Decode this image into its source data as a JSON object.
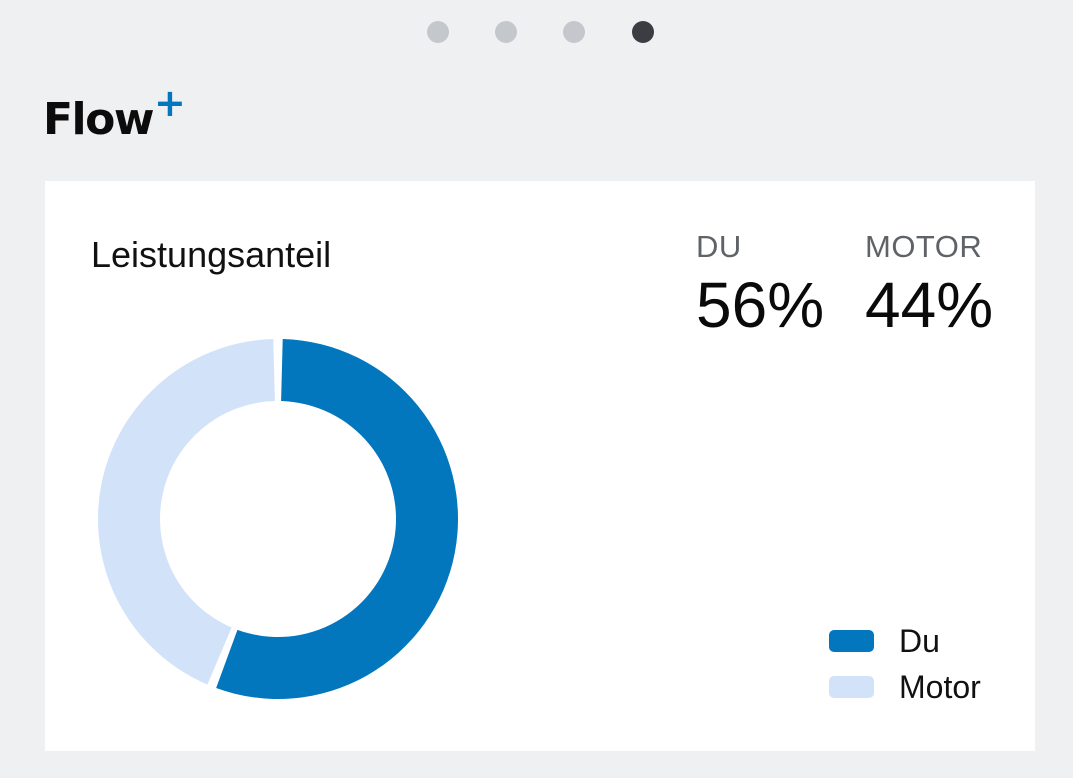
{
  "pager": {
    "pages": 4,
    "active_index": 3
  },
  "header": {
    "logo_text": "Flow",
    "logo_plus": "+"
  },
  "colors": {
    "background": "#eff0f2",
    "card": "#ffffff",
    "primary_blue": "#0277bd",
    "light_blue": "#d2e3f9",
    "dot_inactive": "#c4c8cd",
    "dot_active": "#3a3d41"
  },
  "card": {
    "title": "Leistungsanteil",
    "stats": [
      {
        "label": "DU",
        "value": "56%"
      },
      {
        "label": "MOTOR",
        "value": "44%"
      }
    ],
    "legend": [
      {
        "label": "Du"
      },
      {
        "label": "Motor"
      }
    ]
  },
  "chart_data": {
    "type": "pie",
    "title": "Leistungsanteil",
    "categories": [
      "Du",
      "Motor"
    ],
    "values": [
      56,
      44
    ],
    "unit": "%",
    "colors": [
      "#0277bd",
      "#d2e3f9"
    ],
    "legend": "bottom-right"
  }
}
